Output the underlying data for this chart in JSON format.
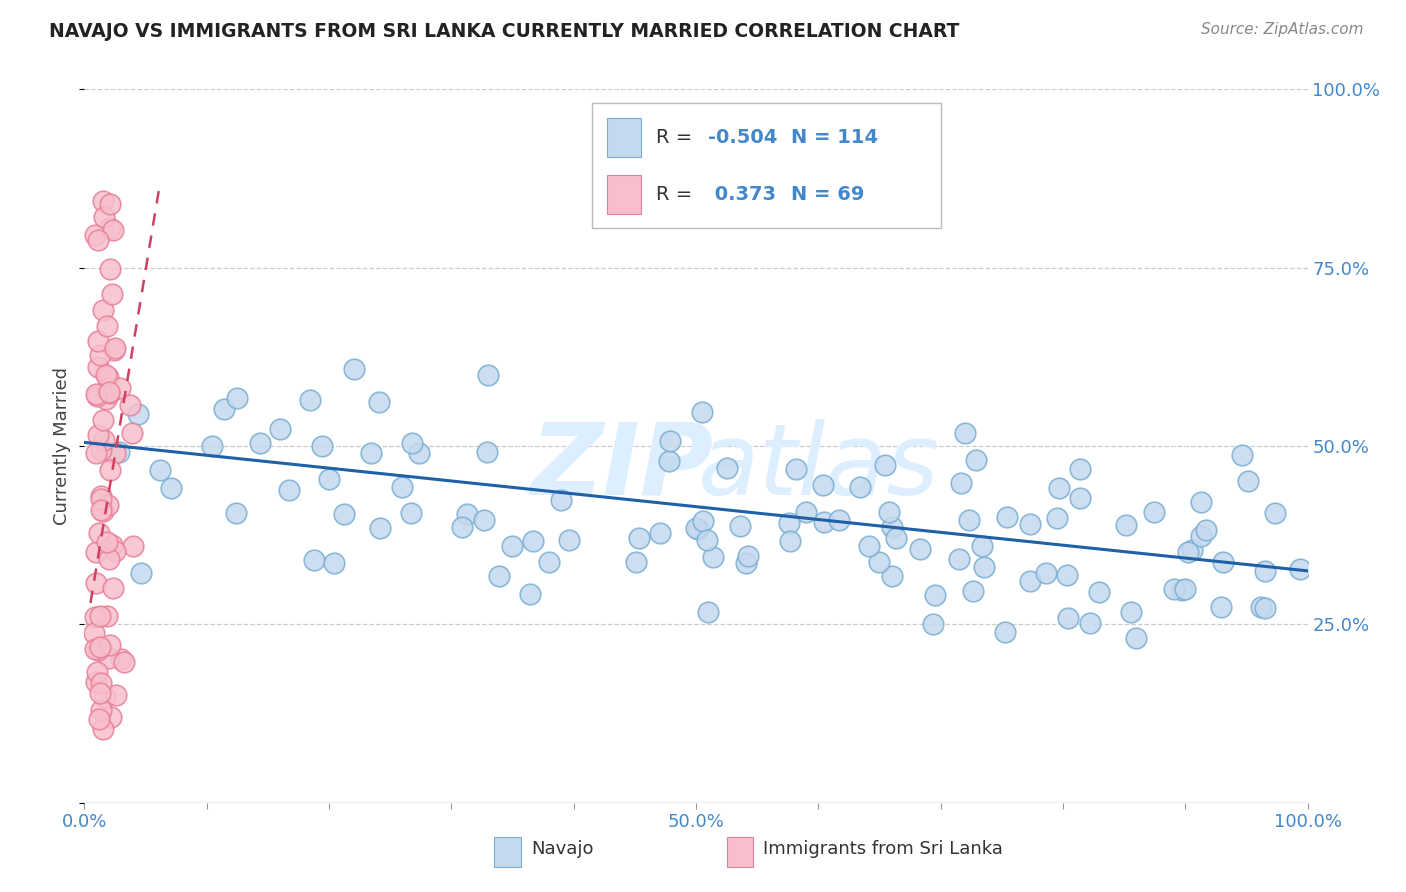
{
  "title": "NAVAJO VS IMMIGRANTS FROM SRI LANKA CURRENTLY MARRIED CORRELATION CHART",
  "source": "Source: ZipAtlas.com",
  "ylabel": "Currently Married",
  "legend_R1": "-0.504",
  "legend_N1": "114",
  "legend_R2": "0.373",
  "legend_N2": "69",
  "navajo_fill": "#c5d9ee",
  "navajo_edge": "#7aafd4",
  "srilanka_fill": "#f7bfcc",
  "srilanka_edge": "#e8809a",
  "navajo_line_color": "#2060a8",
  "srilanka_line_color": "#d04060",
  "legend_text_color": "#4488cc",
  "background_color": "#ffffff",
  "watermark_color": "#ddeeff"
}
